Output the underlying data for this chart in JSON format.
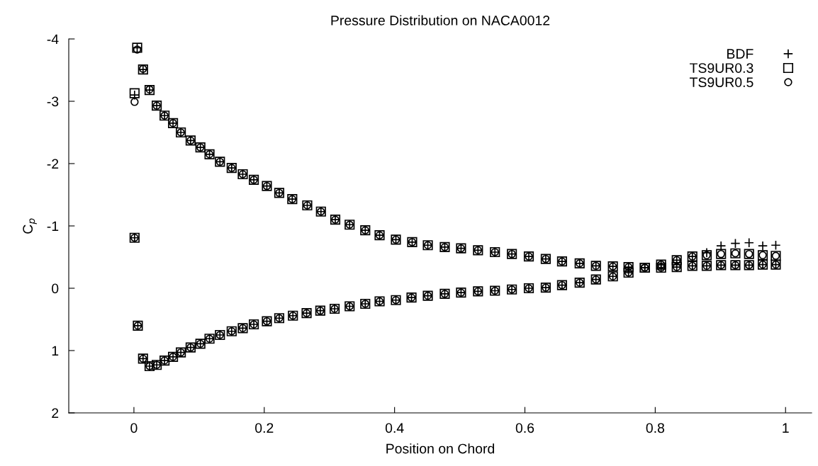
{
  "chart_data": {
    "type": "scatter",
    "title": "Pressure Distribution on NACA0012",
    "xlabel": "Position on Chord",
    "ylabel": "C$_{p}$",
    "xlim": [
      -0.1,
      1.04
    ],
    "xticks": [
      0,
      0.2,
      0.4,
      0.6,
      0.8,
      1
    ],
    "ylim": [
      2,
      -4
    ],
    "yticks": [
      -4,
      -3,
      -2,
      -1,
      0,
      1,
      2
    ],
    "grid": false,
    "legend": "top right",
    "series": [
      {
        "name": "BDF",
        "color": "#000000",
        "marker": "cross",
        "x": [
          0.001,
          0.001,
          0.005,
          0.014,
          0.024,
          0.035,
          0.047,
          0.06,
          0.072,
          0.087,
          0.102,
          0.116,
          0.132,
          0.15,
          0.167,
          0.184,
          0.204,
          0.223,
          0.243,
          0.266,
          0.287,
          0.309,
          0.331,
          0.355,
          0.377,
          0.402,
          0.427,
          0.451,
          0.477,
          0.502,
          0.528,
          0.554,
          0.58,
          0.606,
          0.632,
          0.657,
          0.684,
          0.709,
          0.735,
          0.759,
          0.784,
          0.809,
          0.833,
          0.857,
          0.879,
          0.901,
          0.923,
          0.944,
          0.965,
          0.985,
          0.006,
          0.014,
          0.024,
          0.035,
          0.047,
          0.06,
          0.072,
          0.087,
          0.102,
          0.116,
          0.132,
          0.15,
          0.167,
          0.184,
          0.204,
          0.223,
          0.244,
          0.265,
          0.286,
          0.308,
          0.331,
          0.355,
          0.377,
          0.402,
          0.426,
          0.451,
          0.477,
          0.502,
          0.528,
          0.554,
          0.58,
          0.606,
          0.632,
          0.657,
          0.684,
          0.709,
          0.735,
          0.759,
          0.784,
          0.809,
          0.833,
          0.857,
          0.879,
          0.901,
          0.923,
          0.944,
          0.965,
          0.985
        ],
        "values": [
          -0.81,
          -3.1,
          -3.86,
          -3.51,
          -3.18,
          -2.93,
          -2.77,
          -2.65,
          -2.5,
          -2.37,
          -2.26,
          -2.15,
          -2.03,
          -1.93,
          -1.83,
          -1.74,
          -1.64,
          -1.53,
          -1.43,
          -1.33,
          -1.23,
          -1.1,
          -1.02,
          -0.93,
          -0.85,
          -0.78,
          -0.74,
          -0.69,
          -0.66,
          -0.64,
          -0.61,
          -0.58,
          -0.55,
          -0.51,
          -0.47,
          -0.43,
          -0.4,
          -0.36,
          -0.35,
          -0.34,
          -0.33,
          -0.33,
          -0.34,
          -0.36,
          -0.36,
          -0.37,
          -0.37,
          -0.37,
          -0.38,
          -0.38,
          0.6,
          1.13,
          1.25,
          1.23,
          1.16,
          1.1,
          1.03,
          0.95,
          0.89,
          0.81,
          0.75,
          0.69,
          0.64,
          0.58,
          0.53,
          0.48,
          0.44,
          0.4,
          0.36,
          0.33,
          0.29,
          0.25,
          0.21,
          0.19,
          0.15,
          0.12,
          0.09,
          0.07,
          0.05,
          0.04,
          0.02,
          0.0,
          -0.01,
          -0.05,
          -0.09,
          -0.14,
          -0.19,
          -0.25,
          -0.33,
          -0.38,
          -0.45,
          -0.51,
          -0.57,
          -0.68,
          -0.72,
          -0.73,
          -0.68,
          -0.69
        ]
      },
      {
        "name": "TS9UR0.3",
        "color": "#000000",
        "marker": "square",
        "x": [
          0.001,
          0.001,
          0.005,
          0.014,
          0.024,
          0.035,
          0.047,
          0.06,
          0.072,
          0.087,
          0.102,
          0.116,
          0.132,
          0.15,
          0.167,
          0.184,
          0.204,
          0.223,
          0.243,
          0.266,
          0.287,
          0.309,
          0.331,
          0.355,
          0.377,
          0.402,
          0.427,
          0.451,
          0.477,
          0.502,
          0.528,
          0.554,
          0.58,
          0.606,
          0.632,
          0.657,
          0.684,
          0.709,
          0.735,
          0.759,
          0.784,
          0.809,
          0.833,
          0.857,
          0.879,
          0.901,
          0.923,
          0.944,
          0.965,
          0.985,
          0.006,
          0.014,
          0.024,
          0.035,
          0.047,
          0.06,
          0.072,
          0.087,
          0.102,
          0.116,
          0.132,
          0.15,
          0.167,
          0.184,
          0.204,
          0.223,
          0.244,
          0.265,
          0.286,
          0.308,
          0.331,
          0.355,
          0.377,
          0.402,
          0.426,
          0.451,
          0.477,
          0.502,
          0.528,
          0.554,
          0.58,
          0.606,
          0.632,
          0.657,
          0.684,
          0.709,
          0.735,
          0.759,
          0.784,
          0.809,
          0.833,
          0.857,
          0.879,
          0.901,
          0.923,
          0.944,
          0.965,
          0.985
        ],
        "values": [
          -0.81,
          -3.13,
          -3.86,
          -3.51,
          -3.18,
          -2.93,
          -2.77,
          -2.65,
          -2.5,
          -2.37,
          -2.26,
          -2.15,
          -2.03,
          -1.93,
          -1.83,
          -1.74,
          -1.64,
          -1.53,
          -1.43,
          -1.33,
          -1.23,
          -1.1,
          -1.02,
          -0.93,
          -0.85,
          -0.78,
          -0.74,
          -0.69,
          -0.66,
          -0.64,
          -0.61,
          -0.58,
          -0.55,
          -0.51,
          -0.47,
          -0.43,
          -0.4,
          -0.36,
          -0.35,
          -0.34,
          -0.33,
          -0.33,
          -0.34,
          -0.36,
          -0.36,
          -0.37,
          -0.37,
          -0.37,
          -0.38,
          -0.38,
          0.6,
          1.13,
          1.25,
          1.23,
          1.16,
          1.1,
          1.03,
          0.95,
          0.89,
          0.81,
          0.75,
          0.69,
          0.64,
          0.58,
          0.53,
          0.48,
          0.44,
          0.4,
          0.36,
          0.33,
          0.29,
          0.25,
          0.21,
          0.19,
          0.15,
          0.12,
          0.09,
          0.07,
          0.05,
          0.04,
          0.02,
          0.0,
          -0.01,
          -0.05,
          -0.09,
          -0.14,
          -0.19,
          -0.25,
          -0.33,
          -0.38,
          -0.45,
          -0.51,
          -0.53,
          -0.55,
          -0.56,
          -0.55,
          -0.53,
          -0.52
        ]
      },
      {
        "name": "TS9UR0.5",
        "color": "#000000",
        "marker": "circle",
        "x": [
          0.001,
          0.001,
          0.005,
          0.014,
          0.024,
          0.035,
          0.047,
          0.06,
          0.072,
          0.087,
          0.102,
          0.116,
          0.132,
          0.15,
          0.167,
          0.184,
          0.204,
          0.223,
          0.243,
          0.266,
          0.287,
          0.309,
          0.331,
          0.355,
          0.377,
          0.402,
          0.427,
          0.451,
          0.477,
          0.502,
          0.528,
          0.554,
          0.58,
          0.606,
          0.632,
          0.657,
          0.684,
          0.709,
          0.735,
          0.759,
          0.784,
          0.809,
          0.833,
          0.857,
          0.879,
          0.901,
          0.923,
          0.944,
          0.965,
          0.985,
          0.006,
          0.014,
          0.024,
          0.035,
          0.047,
          0.06,
          0.072,
          0.087,
          0.102,
          0.116,
          0.132,
          0.15,
          0.167,
          0.184,
          0.204,
          0.223,
          0.244,
          0.265,
          0.286,
          0.308,
          0.331,
          0.355,
          0.377,
          0.402,
          0.426,
          0.451,
          0.477,
          0.502,
          0.528,
          0.554,
          0.58,
          0.606,
          0.632,
          0.657,
          0.684,
          0.709,
          0.735,
          0.759,
          0.784,
          0.809,
          0.833,
          0.857,
          0.879,
          0.901,
          0.923,
          0.944,
          0.965,
          0.985
        ],
        "values": [
          -0.81,
          -2.99,
          -3.83,
          -3.52,
          -3.19,
          -2.93,
          -2.77,
          -2.65,
          -2.5,
          -2.37,
          -2.26,
          -2.15,
          -2.03,
          -1.93,
          -1.83,
          -1.74,
          -1.64,
          -1.53,
          -1.43,
          -1.33,
          -1.23,
          -1.1,
          -1.02,
          -0.93,
          -0.85,
          -0.78,
          -0.74,
          -0.69,
          -0.66,
          -0.64,
          -0.61,
          -0.58,
          -0.55,
          -0.51,
          -0.47,
          -0.43,
          -0.4,
          -0.36,
          -0.35,
          -0.34,
          -0.33,
          -0.33,
          -0.34,
          -0.36,
          -0.36,
          -0.37,
          -0.37,
          -0.37,
          -0.38,
          -0.38,
          0.6,
          1.13,
          1.25,
          1.23,
          1.16,
          1.1,
          1.03,
          0.95,
          0.89,
          0.81,
          0.75,
          0.69,
          0.64,
          0.58,
          0.53,
          0.48,
          0.44,
          0.4,
          0.36,
          0.33,
          0.29,
          0.25,
          0.21,
          0.19,
          0.15,
          0.12,
          0.09,
          0.07,
          0.05,
          0.04,
          0.02,
          0.0,
          -0.01,
          -0.05,
          -0.09,
          -0.14,
          -0.19,
          -0.25,
          -0.33,
          -0.38,
          -0.45,
          -0.51,
          -0.53,
          -0.55,
          -0.56,
          -0.55,
          -0.53,
          -0.52
        ]
      }
    ]
  }
}
